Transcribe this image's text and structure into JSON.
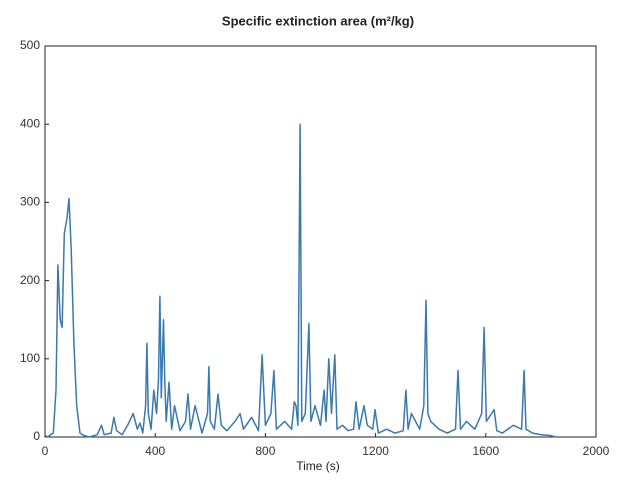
{
  "chart_data": {
    "type": "line",
    "title": "Specific extinction area (m²/kg)",
    "x_label": "Time (s)",
    "color": "#3a78b0",
    "xlim": [
      0,
      2000
    ],
    "xticks": [
      0,
      400,
      800,
      1200,
      1600,
      2000
    ],
    "ylim": [
      0,
      500
    ],
    "yticks": [
      0,
      100,
      200,
      300,
      400,
      500
    ],
    "x": [
      0,
      10,
      20,
      30,
      40,
      47,
      55,
      62,
      70,
      80,
      87,
      95,
      105,
      115,
      127,
      140,
      160,
      190,
      205,
      215,
      240,
      250,
      260,
      280,
      300,
      320,
      335,
      345,
      355,
      365,
      370,
      375,
      385,
      395,
      405,
      412,
      417,
      422,
      430,
      435,
      440,
      450,
      460,
      470,
      490,
      510,
      519,
      528,
      545,
      570,
      590,
      595,
      600,
      615,
      628,
      640,
      660,
      690,
      708,
      720,
      750,
      775,
      788,
      800,
      820,
      831,
      840,
      870,
      895,
      905,
      911,
      918,
      926,
      932,
      945,
      958,
      965,
      980,
      1000,
      1013,
      1020,
      1030,
      1040,
      1052,
      1060,
      1080,
      1100,
      1120,
      1129,
      1140,
      1158,
      1170,
      1190,
      1198,
      1210,
      1240,
      1270,
      1300,
      1310,
      1318,
      1330,
      1360,
      1375,
      1383,
      1390,
      1400,
      1430,
      1460,
      1490,
      1499,
      1508,
      1530,
      1560,
      1585,
      1594,
      1602,
      1630,
      1640,
      1660,
      1700,
      1730,
      1739,
      1746,
      1770,
      1800,
      1830,
      1855
    ],
    "values": [
      2,
      0,
      3,
      5,
      60,
      220,
      150,
      140,
      260,
      280,
      305,
      240,
      120,
      40,
      5,
      2,
      0,
      3,
      15,
      3,
      5,
      25,
      8,
      3,
      15,
      30,
      10,
      18,
      5,
      40,
      120,
      30,
      10,
      60,
      30,
      75,
      180,
      50,
      150,
      70,
      20,
      70,
      10,
      40,
      8,
      20,
      55,
      10,
      40,
      5,
      30,
      90,
      20,
      10,
      55,
      15,
      8,
      20,
      30,
      10,
      25,
      8,
      105,
      15,
      30,
      85,
      10,
      20,
      10,
      45,
      40,
      15,
      400,
      20,
      30,
      145,
      20,
      40,
      15,
      60,
      20,
      100,
      30,
      105,
      10,
      15,
      8,
      10,
      45,
      10,
      40,
      15,
      10,
      35,
      5,
      10,
      5,
      8,
      60,
      10,
      30,
      10,
      40,
      175,
      30,
      20,
      10,
      5,
      10,
      85,
      10,
      20,
      10,
      30,
      140,
      20,
      35,
      8,
      5,
      15,
      10,
      85,
      10,
      5,
      3,
      2,
      0
    ]
  }
}
